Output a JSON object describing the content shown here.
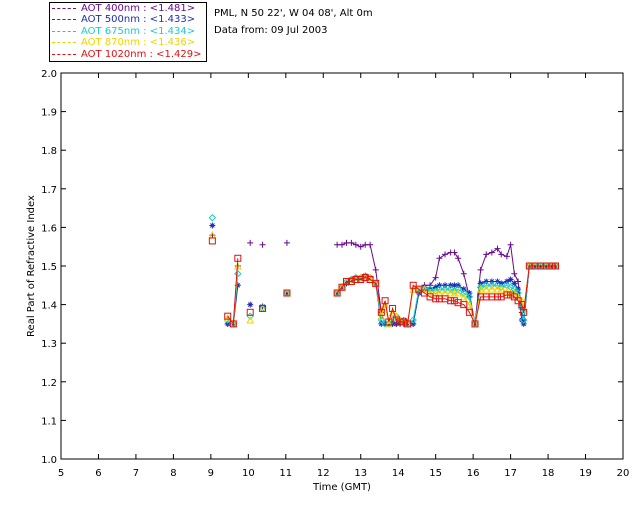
{
  "header": {
    "site": "PML, N 50 22', W 04 08', Alt 0m",
    "date": "Data from: 09 Jul 2003"
  },
  "legend": [
    {
      "label": "AOT  400nm : <1.481>",
      "color": "#6a0a8e"
    },
    {
      "label": "AOT  500nm : <1.433>",
      "color": "#1e2fb4"
    },
    {
      "label": "AOT  675nm : <1.434>",
      "color": "#12d1c6"
    },
    {
      "label": "AOT  870nm : <1.436>",
      "color": "#f3d200"
    },
    {
      "label": "AOT 1020nm : <1.429>",
      "color": "#e01010"
    }
  ],
  "chart_data": {
    "type": "line",
    "xlabel": "Time (GMT)",
    "ylabel": "Real Part of Refractive Index",
    "xlim": [
      5,
      20
    ],
    "ylim": [
      1.0,
      2.0
    ],
    "xticks": [
      "5",
      "6",
      "7",
      "8",
      "9",
      "10",
      "11",
      "12",
      "13",
      "14",
      "15",
      "16",
      "17",
      "18",
      "19",
      "20"
    ],
    "yticks": [
      "1.0",
      "1.1",
      "1.2",
      "1.3",
      "1.4",
      "1.5",
      "1.6",
      "1.7",
      "1.8",
      "1.9",
      "2.0"
    ],
    "series": [
      {
        "name": "AOT  400nm : <1.481>",
        "color": "#6a0a8e",
        "marker": "plus",
        "points": [
          [
            9.04,
            1.58
          ],
          [
            9.45,
            1.35
          ],
          [
            9.6,
            1.35
          ],
          [
            9.72,
            1.5
          ],
          [
            10.05,
            1.56
          ],
          [
            10.38,
            1.555
          ],
          [
            11.03,
            1.56
          ],
          [
            12.37,
            1.555
          ],
          [
            12.5,
            1.555
          ],
          [
            12.62,
            1.56
          ],
          [
            12.75,
            1.56
          ],
          [
            12.87,
            1.555
          ],
          [
            13.0,
            1.55
          ],
          [
            13.12,
            1.555
          ],
          [
            13.25,
            1.555
          ],
          [
            13.4,
            1.49
          ],
          [
            13.55,
            1.38
          ],
          [
            13.65,
            1.35
          ],
          [
            13.75,
            1.35
          ],
          [
            13.85,
            1.35
          ],
          [
            13.95,
            1.35
          ],
          [
            14.05,
            1.35
          ],
          [
            14.15,
            1.35
          ],
          [
            14.25,
            1.35
          ],
          [
            14.4,
            1.35
          ],
          [
            14.55,
            1.43
          ],
          [
            14.7,
            1.45
          ],
          [
            14.85,
            1.45
          ],
          [
            15.0,
            1.47
          ],
          [
            15.1,
            1.52
          ],
          [
            15.25,
            1.53
          ],
          [
            15.4,
            1.535
          ],
          [
            15.5,
            1.535
          ],
          [
            15.6,
            1.52
          ],
          [
            15.75,
            1.48
          ],
          [
            15.9,
            1.42
          ],
          [
            16.05,
            1.35
          ],
          [
            16.2,
            1.49
          ],
          [
            16.35,
            1.53
          ],
          [
            16.5,
            1.535
          ],
          [
            16.65,
            1.545
          ],
          [
            16.75,
            1.53
          ],
          [
            16.9,
            1.525
          ],
          [
            17.0,
            1.555
          ],
          [
            17.1,
            1.48
          ],
          [
            17.2,
            1.46
          ],
          [
            17.3,
            1.38
          ],
          [
            17.35,
            1.36
          ],
          [
            17.5,
            1.5
          ],
          [
            17.65,
            1.5
          ],
          [
            17.8,
            1.5
          ],
          [
            17.95,
            1.5
          ],
          [
            18.1,
            1.5
          ],
          [
            18.2,
            1.5
          ]
        ]
      },
      {
        "name": "AOT  500nm : <1.433>",
        "color": "#1e2fb4",
        "marker": "star",
        "points": [
          [
            9.04,
            1.605
          ],
          [
            9.45,
            1.35
          ],
          [
            9.6,
            1.35
          ],
          [
            9.72,
            1.45
          ],
          [
            10.05,
            1.4
          ],
          [
            10.38,
            1.395
          ],
          [
            11.03,
            1.43
          ],
          [
            12.37,
            1.43
          ],
          [
            12.5,
            1.445
          ],
          [
            12.62,
            1.455
          ],
          [
            12.75,
            1.465
          ],
          [
            12.87,
            1.47
          ],
          [
            13.0,
            1.47
          ],
          [
            13.12,
            1.475
          ],
          [
            13.25,
            1.47
          ],
          [
            13.4,
            1.455
          ],
          [
            13.55,
            1.35
          ],
          [
            13.65,
            1.35
          ],
          [
            13.75,
            1.35
          ],
          [
            13.85,
            1.35
          ],
          [
            13.95,
            1.35
          ],
          [
            14.05,
            1.355
          ],
          [
            14.15,
            1.36
          ],
          [
            14.25,
            1.35
          ],
          [
            14.4,
            1.35
          ],
          [
            14.55,
            1.43
          ],
          [
            14.7,
            1.445
          ],
          [
            14.85,
            1.44
          ],
          [
            15.0,
            1.445
          ],
          [
            15.1,
            1.45
          ],
          [
            15.25,
            1.45
          ],
          [
            15.4,
            1.45
          ],
          [
            15.5,
            1.45
          ],
          [
            15.6,
            1.45
          ],
          [
            15.75,
            1.44
          ],
          [
            15.9,
            1.43
          ],
          [
            16.05,
            1.35
          ],
          [
            16.2,
            1.455
          ],
          [
            16.35,
            1.46
          ],
          [
            16.5,
            1.46
          ],
          [
            16.65,
            1.46
          ],
          [
            16.75,
            1.455
          ],
          [
            16.9,
            1.46
          ],
          [
            17.0,
            1.465
          ],
          [
            17.1,
            1.455
          ],
          [
            17.2,
            1.44
          ],
          [
            17.3,
            1.36
          ],
          [
            17.35,
            1.35
          ],
          [
            17.5,
            1.5
          ],
          [
            17.65,
            1.5
          ],
          [
            17.8,
            1.5
          ],
          [
            17.95,
            1.5
          ],
          [
            18.1,
            1.5
          ],
          [
            18.2,
            1.5
          ]
        ]
      },
      {
        "name": "AOT  675nm : <1.434>",
        "color": "#12d1c6",
        "marker": "diamond",
        "points": [
          [
            9.04,
            1.625
          ],
          [
            9.45,
            1.36
          ],
          [
            9.6,
            1.35
          ],
          [
            9.72,
            1.48
          ],
          [
            10.05,
            1.37
          ],
          [
            10.38,
            1.39
          ],
          [
            11.03,
            1.43
          ],
          [
            12.37,
            1.43
          ],
          [
            12.5,
            1.445
          ],
          [
            12.62,
            1.46
          ],
          [
            12.75,
            1.465
          ],
          [
            12.87,
            1.47
          ],
          [
            13.0,
            1.47
          ],
          [
            13.12,
            1.47
          ],
          [
            13.25,
            1.47
          ],
          [
            13.4,
            1.455
          ],
          [
            13.55,
            1.36
          ],
          [
            13.65,
            1.35
          ],
          [
            13.75,
            1.35
          ],
          [
            13.85,
            1.36
          ],
          [
            13.95,
            1.37
          ],
          [
            14.05,
            1.36
          ],
          [
            14.15,
            1.355
          ],
          [
            14.25,
            1.35
          ],
          [
            14.4,
            1.36
          ],
          [
            14.55,
            1.44
          ],
          [
            14.7,
            1.44
          ],
          [
            14.85,
            1.44
          ],
          [
            15.0,
            1.435
          ],
          [
            15.1,
            1.44
          ],
          [
            15.25,
            1.44
          ],
          [
            15.4,
            1.44
          ],
          [
            15.5,
            1.435
          ],
          [
            15.6,
            1.44
          ],
          [
            15.75,
            1.43
          ],
          [
            15.9,
            1.42
          ],
          [
            16.05,
            1.35
          ],
          [
            16.2,
            1.445
          ],
          [
            16.35,
            1.45
          ],
          [
            16.5,
            1.45
          ],
          [
            16.65,
            1.45
          ],
          [
            16.75,
            1.445
          ],
          [
            16.9,
            1.45
          ],
          [
            17.0,
            1.445
          ],
          [
            17.1,
            1.44
          ],
          [
            17.2,
            1.43
          ],
          [
            17.3,
            1.39
          ],
          [
            17.35,
            1.36
          ],
          [
            17.5,
            1.5
          ],
          [
            17.65,
            1.5
          ],
          [
            17.8,
            1.5
          ],
          [
            17.95,
            1.5
          ],
          [
            18.1,
            1.5
          ],
          [
            18.2,
            1.5
          ]
        ]
      },
      {
        "name": "AOT  870nm : <1.436>",
        "color": "#f3d200",
        "marker": "triangle",
        "points": [
          [
            9.04,
            1.58
          ],
          [
            9.45,
            1.365
          ],
          [
            9.6,
            1.35
          ],
          [
            9.72,
            1.5
          ],
          [
            10.05,
            1.36
          ],
          [
            10.38,
            1.39
          ],
          [
            11.03,
            1.43
          ],
          [
            12.37,
            1.43
          ],
          [
            12.5,
            1.445
          ],
          [
            12.62,
            1.46
          ],
          [
            12.75,
            1.46
          ],
          [
            12.87,
            1.465
          ],
          [
            13.0,
            1.47
          ],
          [
            13.12,
            1.47
          ],
          [
            13.25,
            1.47
          ],
          [
            13.4,
            1.455
          ],
          [
            13.55,
            1.37
          ],
          [
            13.65,
            1.4
          ],
          [
            13.75,
            1.35
          ],
          [
            13.85,
            1.38
          ],
          [
            13.95,
            1.37
          ],
          [
            14.05,
            1.36
          ],
          [
            14.15,
            1.355
          ],
          [
            14.25,
            1.35
          ],
          [
            14.4,
            1.44
          ],
          [
            14.55,
            1.44
          ],
          [
            14.7,
            1.44
          ],
          [
            14.85,
            1.43
          ],
          [
            15.0,
            1.43
          ],
          [
            15.1,
            1.43
          ],
          [
            15.25,
            1.43
          ],
          [
            15.4,
            1.43
          ],
          [
            15.5,
            1.43
          ],
          [
            15.6,
            1.43
          ],
          [
            15.75,
            1.42
          ],
          [
            15.9,
            1.4
          ],
          [
            16.05,
            1.35
          ],
          [
            16.2,
            1.44
          ],
          [
            16.35,
            1.44
          ],
          [
            16.5,
            1.44
          ],
          [
            16.65,
            1.44
          ],
          [
            16.75,
            1.44
          ],
          [
            16.9,
            1.435
          ],
          [
            17.0,
            1.43
          ],
          [
            17.1,
            1.43
          ],
          [
            17.2,
            1.42
          ],
          [
            17.3,
            1.41
          ],
          [
            17.35,
            1.39
          ],
          [
            17.5,
            1.5
          ],
          [
            17.65,
            1.5
          ],
          [
            17.8,
            1.5
          ],
          [
            17.95,
            1.5
          ],
          [
            18.1,
            1.5
          ],
          [
            18.2,
            1.5
          ]
        ]
      },
      {
        "name": "AOT 1020nm : <1.429>",
        "color": "#e01010",
        "marker": "square",
        "points": [
          [
            9.04,
            1.565
          ],
          [
            9.45,
            1.37
          ],
          [
            9.6,
            1.35
          ],
          [
            9.72,
            1.52
          ],
          [
            10.05,
            1.38
          ],
          [
            10.38,
            1.39
          ],
          [
            11.03,
            1.43
          ],
          [
            12.37,
            1.43
          ],
          [
            12.5,
            1.445
          ],
          [
            12.62,
            1.46
          ],
          [
            12.75,
            1.46
          ],
          [
            12.87,
            1.465
          ],
          [
            13.0,
            1.465
          ],
          [
            13.12,
            1.47
          ],
          [
            13.25,
            1.465
          ],
          [
            13.4,
            1.455
          ],
          [
            13.55,
            1.38
          ],
          [
            13.65,
            1.41
          ],
          [
            13.75,
            1.355
          ],
          [
            13.85,
            1.39
          ],
          [
            13.95,
            1.36
          ],
          [
            14.05,
            1.355
          ],
          [
            14.15,
            1.355
          ],
          [
            14.25,
            1.35
          ],
          [
            14.4,
            1.45
          ],
          [
            14.55,
            1.44
          ],
          [
            14.7,
            1.43
          ],
          [
            14.85,
            1.42
          ],
          [
            15.0,
            1.415
          ],
          [
            15.1,
            1.415
          ],
          [
            15.25,
            1.415
          ],
          [
            15.4,
            1.41
          ],
          [
            15.5,
            1.41
          ],
          [
            15.6,
            1.405
          ],
          [
            15.75,
            1.4
          ],
          [
            15.9,
            1.38
          ],
          [
            16.05,
            1.35
          ],
          [
            16.2,
            1.42
          ],
          [
            16.35,
            1.42
          ],
          [
            16.5,
            1.42
          ],
          [
            16.65,
            1.42
          ],
          [
            16.75,
            1.42
          ],
          [
            16.9,
            1.425
          ],
          [
            17.0,
            1.425
          ],
          [
            17.1,
            1.42
          ],
          [
            17.2,
            1.41
          ],
          [
            17.3,
            1.4
          ],
          [
            17.35,
            1.38
          ],
          [
            17.5,
            1.5
          ],
          [
            17.65,
            1.5
          ],
          [
            17.8,
            1.5
          ],
          [
            17.95,
            1.5
          ],
          [
            18.1,
            1.5
          ],
          [
            18.2,
            1.5
          ]
        ]
      }
    ]
  }
}
